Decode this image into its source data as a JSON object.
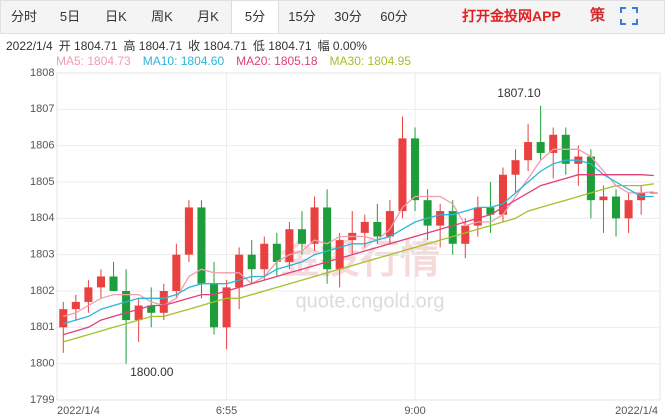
{
  "tabs": [
    "分时",
    "5日",
    "日K",
    "周K",
    "月K",
    "5分",
    "15分",
    "30分",
    "60分"
  ],
  "active_tab": "5分",
  "app_link": "打开金投网APP",
  "strategy": "策",
  "info": [
    "2022/1/4",
    "开 1804.71",
    "高 1804.71",
    "收 1804.71",
    "低 1804.71",
    "幅 0.00%"
  ],
  "chart_data": {
    "type": "candlestick",
    "up_color": "#e8413f",
    "down_color": "#1e9e3a",
    "watermark": [
      "金投行情",
      "quote.cngold.org"
    ],
    "categories": [
      "2022/1/4",
      null,
      null,
      null,
      null,
      null,
      null,
      null,
      null,
      null,
      null,
      null,
      null,
      "6:55",
      null,
      null,
      null,
      null,
      null,
      null,
      null,
      null,
      null,
      null,
      null,
      null,
      null,
      null,
      "9:00",
      null,
      null,
      null,
      null,
      null,
      null,
      null,
      null,
      null,
      null,
      null,
      null,
      null,
      null,
      null,
      null,
      null,
      null,
      "2022/1/4"
    ],
    "ohlc": [
      [
        1801.0,
        1801.7,
        1800.3,
        1801.5
      ],
      [
        1801.5,
        1801.9,
        1801.2,
        1801.7
      ],
      [
        1801.7,
        1802.3,
        1801.4,
        1802.1
      ],
      [
        1802.1,
        1802.6,
        1801.8,
        1802.4
      ],
      [
        1802.4,
        1802.8,
        1802.0,
        1802.0
      ],
      [
        1802.0,
        1802.6,
        1800.0,
        1801.2
      ],
      [
        1801.2,
        1801.8,
        1800.6,
        1801.6
      ],
      [
        1801.6,
        1802.1,
        1801.0,
        1801.4
      ],
      [
        1801.4,
        1802.2,
        1801.2,
        1802.0
      ],
      [
        1802.0,
        1803.3,
        1801.8,
        1803.0
      ],
      [
        1803.0,
        1804.5,
        1802.8,
        1804.3
      ],
      [
        1804.3,
        1804.5,
        1801.8,
        1802.2
      ],
      [
        1802.2,
        1802.8,
        1800.8,
        1801.0
      ],
      [
        1801.0,
        1802.3,
        1800.4,
        1802.1
      ],
      [
        1802.1,
        1803.2,
        1801.5,
        1803.0
      ],
      [
        1803.0,
        1803.4,
        1802.2,
        1802.6
      ],
      [
        1802.6,
        1803.5,
        1802.3,
        1803.3
      ],
      [
        1803.3,
        1803.6,
        1802.4,
        1802.8
      ],
      [
        1802.8,
        1803.9,
        1802.6,
        1803.7
      ],
      [
        1803.7,
        1804.2,
        1803.0,
        1803.3
      ],
      [
        1803.3,
        1804.6,
        1803.1,
        1804.3
      ],
      [
        1804.3,
        1804.8,
        1802.2,
        1802.6
      ],
      [
        1802.6,
        1803.6,
        1802.1,
        1803.4
      ],
      [
        1803.4,
        1804.2,
        1803.0,
        1803.6
      ],
      [
        1803.6,
        1804.1,
        1803.2,
        1803.9
      ],
      [
        1803.9,
        1804.4,
        1803.3,
        1803.5
      ],
      [
        1803.5,
        1804.5,
        1803.3,
        1804.2
      ],
      [
        1804.2,
        1806.8,
        1804.0,
        1806.2
      ],
      [
        1806.2,
        1806.5,
        1804.2,
        1804.5
      ],
      [
        1804.5,
        1804.8,
        1803.4,
        1803.8
      ],
      [
        1803.8,
        1804.4,
        1803.2,
        1804.2
      ],
      [
        1804.2,
        1804.5,
        1803.0,
        1803.3
      ],
      [
        1803.3,
        1804.0,
        1802.9,
        1803.8
      ],
      [
        1803.8,
        1804.6,
        1803.5,
        1804.3
      ],
      [
        1804.3,
        1805.0,
        1803.6,
        1804.1
      ],
      [
        1804.1,
        1805.4,
        1803.9,
        1805.2
      ],
      [
        1805.2,
        1805.9,
        1804.7,
        1805.6
      ],
      [
        1805.6,
        1806.6,
        1805.3,
        1806.1
      ],
      [
        1806.1,
        1807.1,
        1805.6,
        1805.8
      ],
      [
        1805.8,
        1806.5,
        1805.1,
        1806.3
      ],
      [
        1806.3,
        1806.5,
        1805.2,
        1805.5
      ],
      [
        1805.5,
        1806.0,
        1804.9,
        1805.7
      ],
      [
        1805.7,
        1805.9,
        1804.0,
        1804.5
      ],
      [
        1804.5,
        1804.9,
        1803.6,
        1804.6
      ],
      [
        1804.6,
        1804.8,
        1803.5,
        1804.0
      ],
      [
        1804.0,
        1804.7,
        1803.6,
        1804.5
      ],
      [
        1804.5,
        1804.9,
        1804.1,
        1804.7
      ],
      [
        1804.71,
        1804.71,
        1804.71,
        1804.71
      ]
    ],
    "high_label": "1807.10",
    "low_label": "1800.00",
    "series": [
      {
        "name": "MA5: 1804.73",
        "color": "#f29cb0",
        "values": [
          1801.3,
          1801.4,
          1801.6,
          1801.8,
          1801.9,
          1801.9,
          1801.9,
          1801.7,
          1801.6,
          1801.8,
          1802.4,
          1802.6,
          1802.5,
          1802.5,
          1802.5,
          1802.2,
          1802.4,
          1802.8,
          1803.0,
          1803.1,
          1803.4,
          1803.3,
          1803.5,
          1803.5,
          1803.5,
          1803.4,
          1803.7,
          1804.3,
          1804.6,
          1804.6,
          1804.6,
          1804.4,
          1803.8,
          1803.9,
          1803.9,
          1804.1,
          1804.6,
          1805.1,
          1805.6,
          1805.9,
          1805.9,
          1805.9,
          1805.7,
          1805.3,
          1804.9,
          1804.7,
          1804.7,
          1804.73
        ]
      },
      {
        "name": "MA10: 1804.60",
        "color": "#2bb6d6",
        "values": [
          1801.1,
          1801.2,
          1801.3,
          1801.5,
          1801.6,
          1801.7,
          1801.8,
          1801.8,
          1801.8,
          1801.9,
          1802.1,
          1802.2,
          1802.2,
          1802.2,
          1802.3,
          1802.4,
          1802.4,
          1802.6,
          1802.7,
          1802.8,
          1803.0,
          1803.1,
          1803.2,
          1803.3,
          1803.3,
          1803.4,
          1803.5,
          1803.7,
          1803.9,
          1804.0,
          1804.1,
          1804.1,
          1804.2,
          1804.3,
          1804.3,
          1804.4,
          1804.7,
          1805.0,
          1805.3,
          1805.5,
          1805.6,
          1805.6,
          1805.5,
          1805.2,
          1805.0,
          1804.8,
          1804.6,
          1804.6
        ]
      },
      {
        "name": "MA20: 1805.18",
        "color": "#e0407a",
        "values": [
          1800.8,
          1800.9,
          1801.0,
          1801.2,
          1801.3,
          1801.4,
          1801.5,
          1801.6,
          1801.6,
          1801.7,
          1801.8,
          1801.9,
          1801.9,
          1802.0,
          1802.1,
          1802.2,
          1802.3,
          1802.4,
          1802.5,
          1802.6,
          1802.7,
          1802.8,
          1802.9,
          1803.0,
          1803.1,
          1803.2,
          1803.3,
          1803.4,
          1803.5,
          1803.6,
          1803.7,
          1803.8,
          1803.9,
          1804.0,
          1804.1,
          1804.3,
          1804.5,
          1804.7,
          1804.9,
          1805.0,
          1805.1,
          1805.2,
          1805.2,
          1805.2,
          1805.2,
          1805.2,
          1805.2,
          1805.18
        ]
      },
      {
        "name": "MA30: 1804.95",
        "color": "#a3c12a",
        "values": [
          1800.6,
          1800.7,
          1800.8,
          1800.9,
          1801.0,
          1801.1,
          1801.2,
          1801.3,
          1801.3,
          1801.4,
          1801.5,
          1801.6,
          1801.7,
          1801.8,
          1801.8,
          1801.9,
          1802.0,
          1802.1,
          1802.2,
          1802.3,
          1802.4,
          1802.5,
          1802.6,
          1802.7,
          1802.8,
          1802.9,
          1803.0,
          1803.1,
          1803.2,
          1803.3,
          1803.4,
          1803.5,
          1803.6,
          1803.7,
          1803.8,
          1803.9,
          1804.0,
          1804.2,
          1804.3,
          1804.4,
          1804.5,
          1804.6,
          1804.7,
          1804.8,
          1804.9,
          1804.9,
          1804.9,
          1804.95
        ]
      }
    ],
    "ylim": [
      1799,
      1808
    ],
    "yticks": [
      1799,
      1800,
      1801,
      1802,
      1803,
      1804,
      1805,
      1806,
      1807,
      1808
    ],
    "grid": true
  }
}
